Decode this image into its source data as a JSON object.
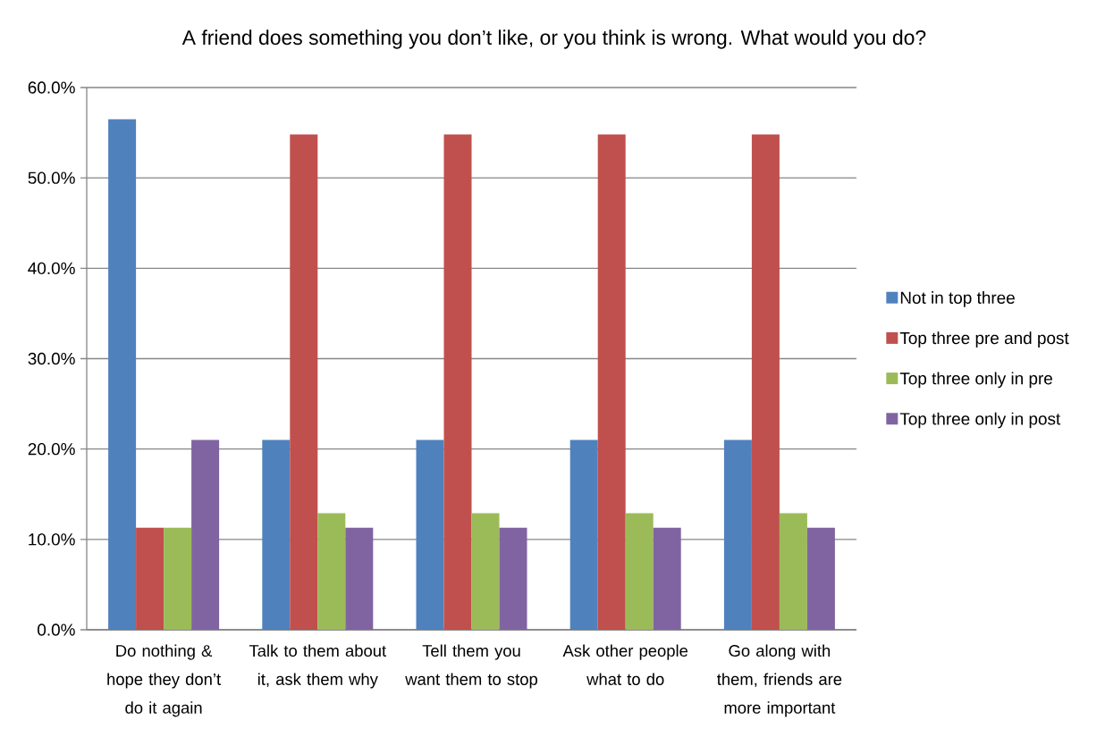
{
  "chart_data": {
    "type": "bar",
    "title": "A friend does something you don’t like, or you think is wrong.  What would you do?",
    "categories": [
      "Do nothing & hope they don’t do it again",
      "Talk to them about it, ask them why",
      "Tell them you want them to stop",
      "Ask other people what to do",
      "Go along with them, friends are more important"
    ],
    "series": [
      {
        "name": "Not in top three",
        "color": "#4f81bd",
        "values": [
          56.5,
          21.0,
          21.0,
          21.0,
          21.0
        ]
      },
      {
        "name": "Top three pre and post",
        "color": "#c0504d",
        "values": [
          11.3,
          54.8,
          54.8,
          54.8,
          54.8
        ]
      },
      {
        "name": "Top three only in pre",
        "color": "#9bbb59",
        "values": [
          11.3,
          12.9,
          12.9,
          12.9,
          12.9
        ]
      },
      {
        "name": "Top three only in post",
        "color": "#8064a2",
        "values": [
          21.0,
          11.3,
          11.3,
          11.3,
          11.3
        ]
      }
    ],
    "ylim": [
      0,
      60
    ],
    "yticks": [
      {
        "value": 0,
        "label": "0.0%"
      },
      {
        "value": 10,
        "label": "10.0%"
      },
      {
        "value": 20,
        "label": "20.0%"
      },
      {
        "value": 30,
        "label": "30.0%"
      },
      {
        "value": 40,
        "label": "40.0%"
      },
      {
        "value": 50,
        "label": "50.0%"
      },
      {
        "value": 60,
        "label": "60.0%"
      }
    ],
    "grid": "y",
    "legend": "right"
  }
}
